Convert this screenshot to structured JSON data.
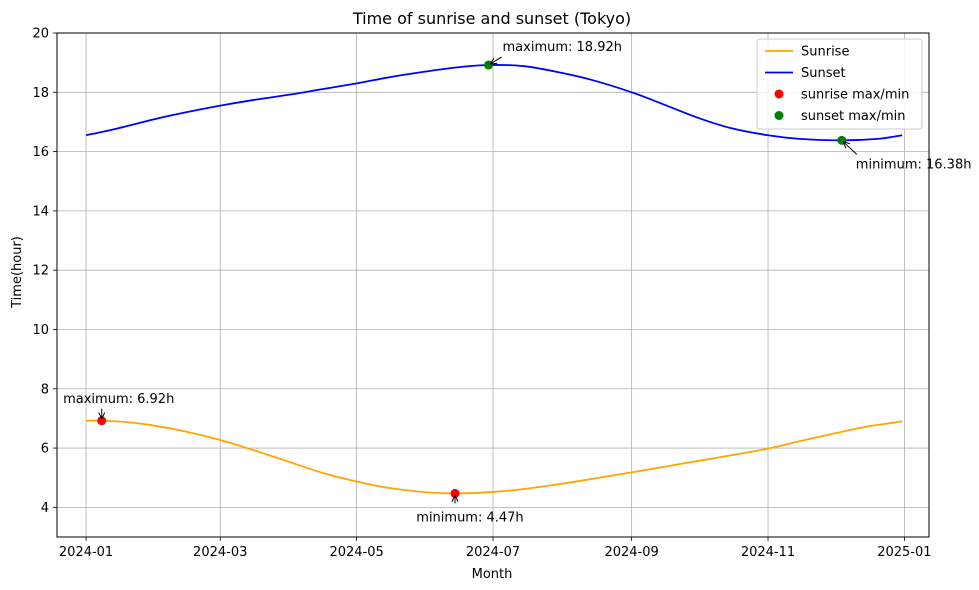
{
  "chart_data": {
    "type": "line",
    "title": "Time of sunrise and sunset (Tokyo)",
    "xlabel": "Month",
    "ylabel": "Time(hour)",
    "xlim": [
      "2023-12-19",
      "2025-01-12"
    ],
    "ylim": [
      3,
      20
    ],
    "x_ticks": [
      "2024-01",
      "2024-03",
      "2024-05",
      "2024-07",
      "2024-09",
      "2024-11",
      "2025-01"
    ],
    "y_ticks": [
      4,
      6,
      8,
      10,
      12,
      14,
      16,
      18,
      20
    ],
    "grid": true,
    "legend_position": "top-right",
    "legend": [
      "Sunrise",
      "Sunset",
      "sunrise max/min",
      "sunset max/min"
    ],
    "series": [
      {
        "name": "Sunrise",
        "color": "#ffa500",
        "x": [
          "2024-01-01",
          "2024-01-08",
          "2024-01-20",
          "2024-02-01",
          "2024-02-15",
          "2024-03-01",
          "2024-03-15",
          "2024-04-01",
          "2024-04-15",
          "2024-05-01",
          "2024-05-15",
          "2024-06-01",
          "2024-06-14",
          "2024-07-01",
          "2024-07-15",
          "2024-08-01",
          "2024-08-15",
          "2024-09-01",
          "2024-09-15",
          "2024-10-01",
          "2024-10-15",
          "2024-11-01",
          "2024-11-15",
          "2024-12-01",
          "2024-12-15",
          "2024-12-31"
        ],
        "y": [
          6.92,
          6.92,
          6.87,
          6.75,
          6.55,
          6.27,
          5.95,
          5.53,
          5.18,
          4.87,
          4.66,
          4.51,
          4.47,
          4.52,
          4.62,
          4.8,
          4.97,
          5.18,
          5.36,
          5.57,
          5.75,
          5.98,
          6.23,
          6.5,
          6.72,
          6.9
        ]
      },
      {
        "name": "Sunset",
        "color": "#0000ff",
        "x": [
          "2024-01-01",
          "2024-01-15",
          "2024-02-01",
          "2024-02-15",
          "2024-03-01",
          "2024-03-15",
          "2024-04-01",
          "2024-04-15",
          "2024-05-01",
          "2024-05-15",
          "2024-06-01",
          "2024-06-15",
          "2024-06-29",
          "2024-07-15",
          "2024-08-01",
          "2024-08-15",
          "2024-09-01",
          "2024-09-15",
          "2024-10-01",
          "2024-10-15",
          "2024-11-01",
          "2024-11-15",
          "2024-12-04",
          "2024-12-20",
          "2024-12-31"
        ],
        "y": [
          16.55,
          16.78,
          17.1,
          17.33,
          17.55,
          17.73,
          17.92,
          18.1,
          18.3,
          18.5,
          18.7,
          18.84,
          18.92,
          18.88,
          18.65,
          18.4,
          18.0,
          17.6,
          17.13,
          16.8,
          16.55,
          16.43,
          16.38,
          16.43,
          16.55
        ]
      }
    ],
    "markers": [
      {
        "name": "sunrise max/min",
        "color": "#ff0000",
        "points": [
          {
            "x": "2024-01-08",
            "y": 6.92
          },
          {
            "x": "2024-06-14",
            "y": 4.47
          }
        ]
      },
      {
        "name": "sunset max/min",
        "color": "#008000",
        "points": [
          {
            "x": "2024-06-29",
            "y": 18.92
          },
          {
            "x": "2024-12-04",
            "y": 16.38
          }
        ]
      }
    ],
    "annotations": [
      {
        "text": "maximum: 6.92h",
        "x": "2024-01-08",
        "y": 6.92,
        "side": "above"
      },
      {
        "text": "minimum: 4.47h",
        "x": "2024-06-14",
        "y": 4.47,
        "side": "below"
      },
      {
        "text": "maximum: 18.92h",
        "x": "2024-06-29",
        "y": 18.92,
        "side": "upper-right"
      },
      {
        "text": "minimum: 16.38h",
        "x": "2024-12-04",
        "y": 16.38,
        "side": "lower-right"
      }
    ]
  }
}
